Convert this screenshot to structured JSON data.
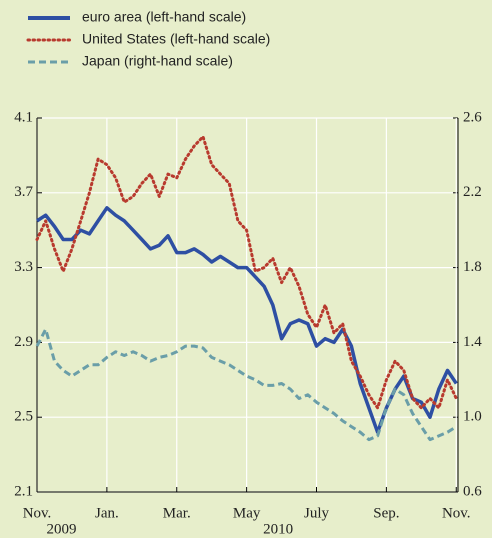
{
  "chart_data": {
    "type": "line",
    "x": [
      0,
      0.25,
      0.5,
      0.75,
      1,
      1.25,
      1.5,
      1.75,
      2,
      2.25,
      2.5,
      2.75,
      3,
      3.25,
      3.5,
      3.75,
      4,
      4.25,
      4.5,
      4.75,
      5,
      5.25,
      5.5,
      5.75,
      6,
      6.25,
      6.5,
      6.75,
      7,
      7.25,
      7.5,
      7.75,
      8,
      8.25,
      8.5,
      8.75,
      9,
      9.25,
      9.5,
      9.75,
      10,
      10.25,
      10.5,
      10.75,
      11,
      11.25,
      11.5,
      11.75,
      12
    ],
    "series": [
      {
        "name": "euro area (left-hand scale)",
        "color": "#2e4fa3",
        "style": "solid",
        "values": [
          3.55,
          3.58,
          3.52,
          3.45,
          3.45,
          3.5,
          3.48,
          3.55,
          3.62,
          3.58,
          3.55,
          3.5,
          3.45,
          3.4,
          3.42,
          3.47,
          3.38,
          3.38,
          3.4,
          3.37,
          3.33,
          3.36,
          3.33,
          3.3,
          3.3,
          3.25,
          3.2,
          3.1,
          2.92,
          3.0,
          3.02,
          3.0,
          2.88,
          2.92,
          2.9,
          2.97,
          2.88,
          2.68,
          2.55,
          2.42,
          2.55,
          2.65,
          2.72,
          2.6,
          2.58,
          2.5,
          2.65,
          2.75,
          2.68
        ]
      },
      {
        "name": "United States (left-hand scale)",
        "color": "#b83a2e",
        "style": "dotted",
        "values": [
          3.45,
          3.55,
          3.4,
          3.28,
          3.4,
          3.55,
          3.7,
          3.88,
          3.85,
          3.78,
          3.65,
          3.68,
          3.75,
          3.8,
          3.68,
          3.8,
          3.78,
          3.88,
          3.95,
          4.0,
          3.85,
          3.8,
          3.75,
          3.55,
          3.5,
          3.28,
          3.3,
          3.35,
          3.22,
          3.3,
          3.2,
          3.05,
          2.98,
          3.1,
          2.95,
          3.0,
          2.8,
          2.72,
          2.62,
          2.55,
          2.7,
          2.8,
          2.75,
          2.6,
          2.55,
          2.6,
          2.55,
          2.7,
          2.6
        ]
      },
      {
        "name": "Japan (right-hand scale)",
        "color": "#6a9ea8",
        "style": "dashed",
        "axis": "y2",
        "values": [
          1.38,
          1.47,
          1.3,
          1.25,
          1.22,
          1.25,
          1.28,
          1.28,
          1.32,
          1.35,
          1.33,
          1.35,
          1.33,
          1.3,
          1.32,
          1.33,
          1.35,
          1.38,
          1.38,
          1.37,
          1.32,
          1.3,
          1.28,
          1.25,
          1.22,
          1.2,
          1.17,
          1.17,
          1.18,
          1.15,
          1.1,
          1.12,
          1.08,
          1.05,
          1.02,
          0.98,
          0.95,
          0.92,
          0.88,
          0.9,
          1.05,
          1.15,
          1.12,
          1.02,
          0.95,
          0.88,
          0.9,
          0.92,
          0.95
        ]
      }
    ],
    "xlim": [
      0,
      12.05
    ],
    "xticks": [
      {
        "value": 0,
        "label": "Nov."
      },
      {
        "value": 2,
        "label": "Jan."
      },
      {
        "value": 4,
        "label": "Mar."
      },
      {
        "value": 6,
        "label": "May"
      },
      {
        "value": 8,
        "label": "July"
      },
      {
        "value": 10,
        "label": "Sep."
      },
      {
        "value": 12,
        "label": "Nov."
      }
    ],
    "years": [
      {
        "value": 0.7,
        "label": "2009"
      },
      {
        "value": 6.9,
        "label": "2010"
      }
    ],
    "ylim": [
      2.1,
      4.1
    ],
    "yticks": [
      2.1,
      2.5,
      2.9,
      3.3,
      3.7,
      4.1
    ],
    "y2lim": [
      0.6,
      2.6
    ],
    "y2ticks": [
      0.6,
      {
        "value": 1,
        "label": "1.0"
      },
      1.4,
      1.8,
      2.2,
      2.6
    ],
    "grid": true
  }
}
